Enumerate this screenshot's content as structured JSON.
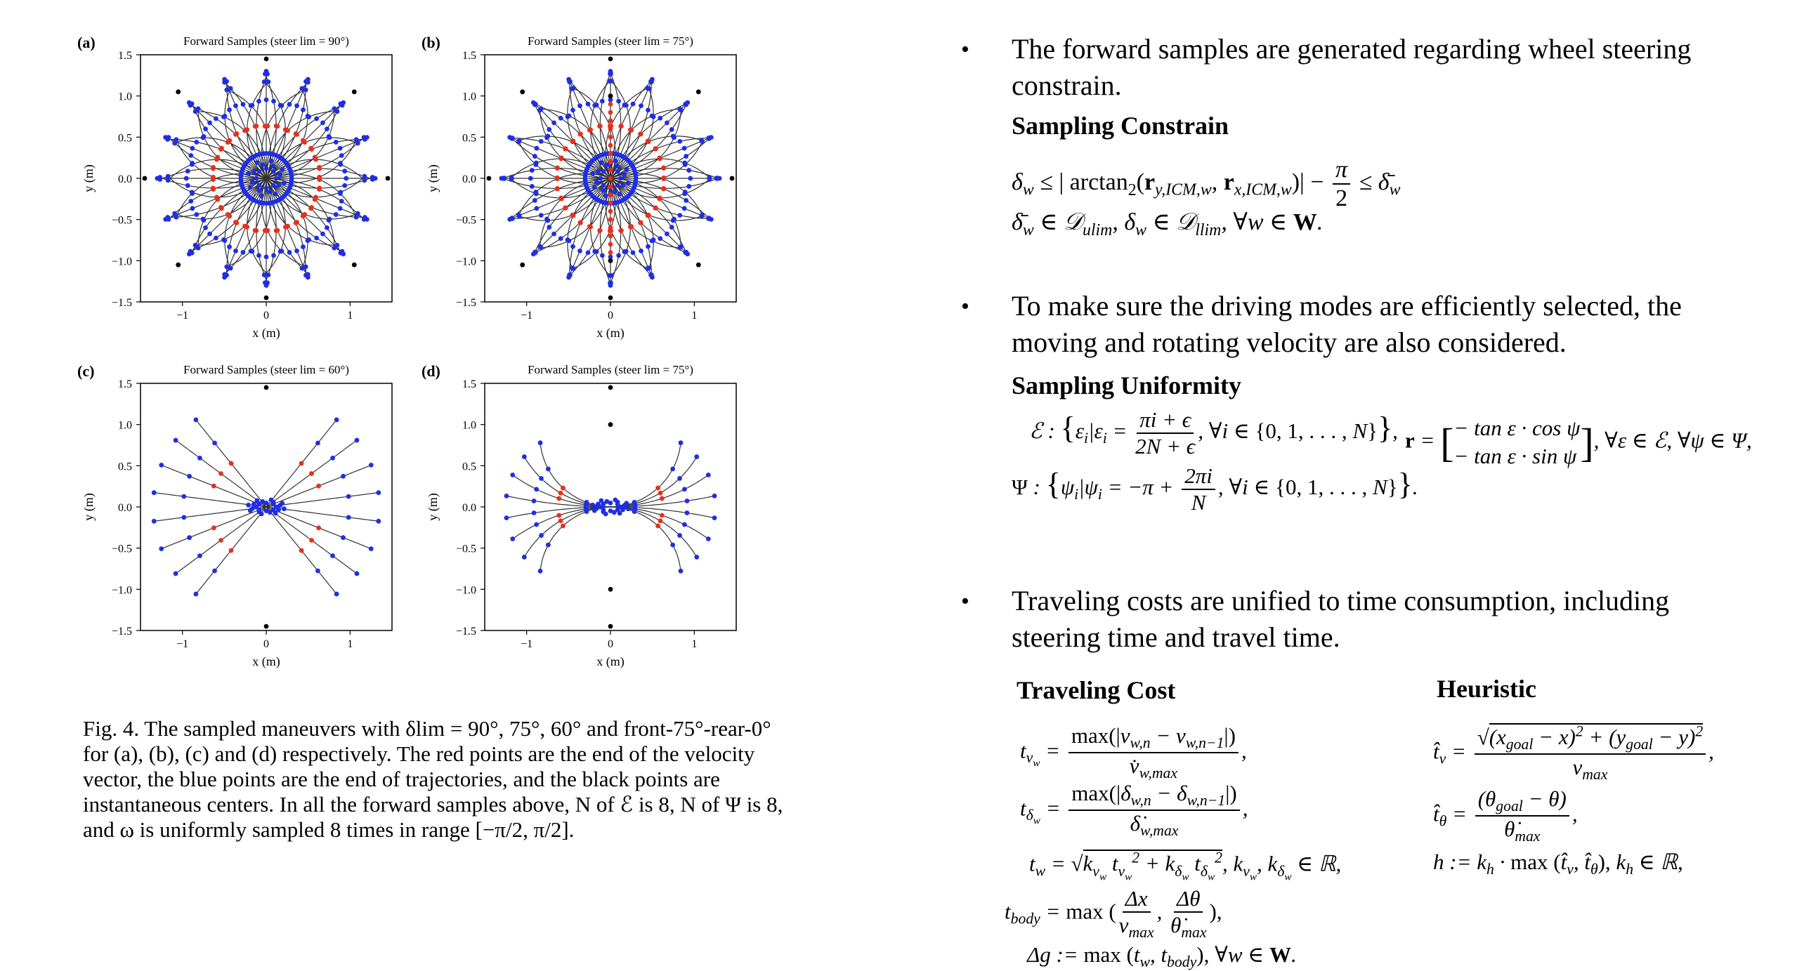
{
  "plots": [
    {
      "panel": "(a)",
      "title": "Forward Samples (steer lim = 90°)",
      "steer": 90,
      "mode": "all"
    },
    {
      "panel": "(b)",
      "title": "Forward Samples (steer lim = 75°)",
      "steer": 75,
      "mode": "all"
    },
    {
      "panel": "(c)",
      "title": "Forward Samples (steer lim = 60°)",
      "steer": 60,
      "mode": "side"
    },
    {
      "panel": "(d)",
      "title": "Forward Samples (steer lim = 75°)",
      "steer": 75,
      "mode": "front"
    }
  ],
  "axes": {
    "xlabel": "x (m)",
    "ylabel": "y (m)",
    "xticks": [
      "−1",
      "0",
      "1"
    ],
    "yticks": [
      "1.5",
      "1.0",
      "0.5",
      "0.0",
      "−0.5",
      "−1.0",
      "−1.5"
    ]
  },
  "colors": {
    "red": "#e8301e",
    "blue": "#1f2ee6",
    "black": "#000000",
    "curve": "#333333"
  },
  "caption": "Fig. 4.   The sampled maneuvers with δlim = 90°, 75°, 60° and front-75°-rear-0° for (a), (b), (c) and (d) respectively. The red points are the end of the velocity vector, the blue points are the end of trajectories, and the black points are instantaneous centers. In all the forward samples above, N of ℰ is 8, N of Ψ is 8, and ω is uniformly sampled 8 times in range [−π/2, π/2].",
  "bullets": [
    "The forward samples are generated regarding wheel steering constrain.",
    "To make sure the driving modes are efficiently selected, the moving and rotating velocity are also considered.",
    "Traveling costs are unified to time consumption, including steering time and travel time."
  ],
  "headings": {
    "sampling_constrain": "Sampling Constrain",
    "sampling_uniformity": "Sampling Uniformity",
    "traveling_cost": "Traveling Cost",
    "heuristic": "Heuristic"
  }
}
